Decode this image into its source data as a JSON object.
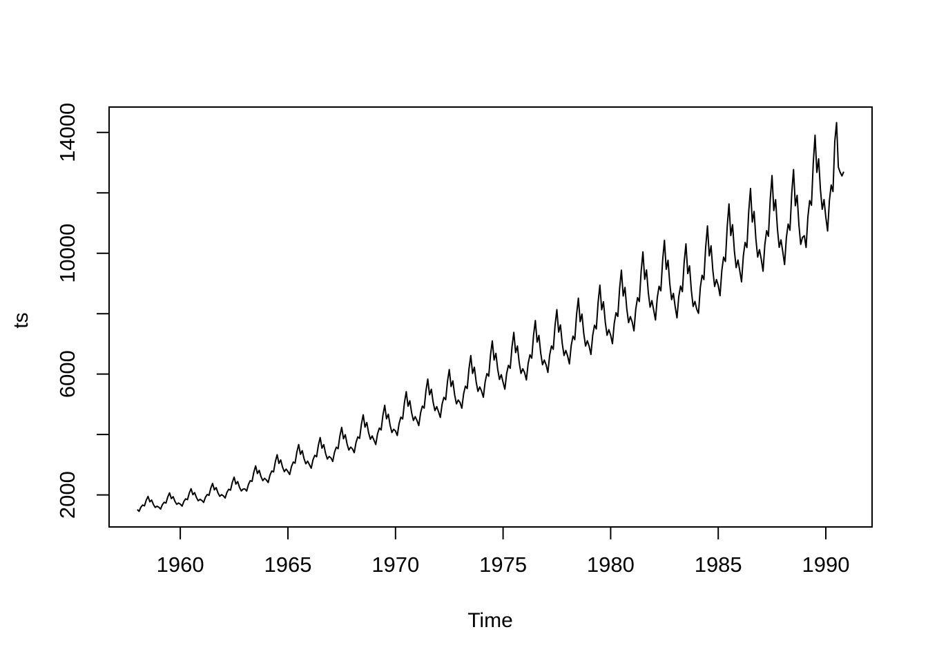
{
  "chart_data": {
    "type": "line",
    "title": "",
    "xlabel": "Time",
    "ylabel": "ts",
    "series_name": "ts",
    "x_start": 1958,
    "frequency": 12,
    "x_end": 1990.8333,
    "xlim": [
      1956.69,
      1992.15
    ],
    "ylim": [
      938,
      14841
    ],
    "x_ticks": [
      1960,
      1965,
      1970,
      1975,
      1980,
      1985,
      1990
    ],
    "y_ticks": [
      2000,
      4000,
      6000,
      8000,
      10000,
      12000,
      14000
    ],
    "y_labeled_ticks": [
      2000,
      6000,
      10000,
      14000
    ],
    "grid": false,
    "legend": "none",
    "line_color": "#000000",
    "background_color": "#ffffff",
    "values": [
      1513,
      1453,
      1591,
      1663,
      1635,
      1825,
      1949,
      1770,
      1827,
      1681,
      1585,
      1624,
      1592,
      1530,
      1677,
      1755,
      1728,
      1931,
      2065,
      1878,
      1940,
      1787,
      1686,
      1731,
      1693,
      1628,
      1786,
      1870,
      1842,
      2060,
      2204,
      2006,
      2074,
      1911,
      1804,
      1853,
      1817,
      1749,
      1920,
      2013,
      1985,
      2221,
      2378,
      2166,
      2241,
      2067,
      1953,
      2007,
      1969,
      1896,
      2083,
      2185,
      2156,
      2414,
      2587,
      2357,
      2441,
      2252,
      2130,
      2190,
      2199,
      2127,
      2345,
      2470,
      2447,
      2750,
      2958,
      2706,
      2811,
      2604,
      2471,
      2549,
      2493,
      2409,
      2652,
      2790,
      2761,
      3099,
      3329,
      3042,
      3157,
      2921,
      2769,
      2853,
      2774,
      2674,
      2940,
      3087,
      3049,
      3418,
      3666,
      3343,
      3465,
      3200,
      3028,
      3117,
      2999,
      2884,
      3161,
      3310,
      3261,
      3644,
      3898,
      3546,
      3664,
      3376,
      3187,
      3271,
      3225,
      3106,
      3411,
      3577,
      3529,
      3953,
      4234,
      3858,
      3994,
      3685,
      3484,
      3582,
      3524,
      3397,
      3734,
      3920,
      3871,
      4338,
      4652,
      4242,
      4396,
      4059,
      3841,
      3952,
      3813,
      3667,
      4022,
      4212,
      4150,
      4640,
      4965,
      4517,
      4671,
      4304,
      4064,
      4172,
      4117,
      3966,
      4358,
      4572,
      4513,
      5054,
      5417,
      4937,
      5114,
      4719,
      4464,
      4590,
      4462,
      4294,
      4714,
      4940,
      4871,
      5450,
      5835,
      5313,
      5497,
      5069,
      4790,
      4921,
      4752,
      4565,
      5002,
      5232,
      5150,
      5752,
      6148,
      5588,
      5773,
      5313,
      5013,
      5141,
      5060,
      4869,
      5344,
      5600,
      5520,
      6177,
      6612,
      6020,
      6228,
      5742,
      5425,
      5574,
      5437,
      5232,
      5741,
      6015,
      5929,
      6633,
      7099,
      6463,
      6685,
      6163,
      5822,
      5980,
      5730,
      5500,
      6020,
      6290,
      6190,
      6910,
      7380,
      6710,
      6930,
      6380,
      6020,
      6175,
      6049,
      5805,
      6352,
      6637,
      6525,
      7280,
      7772,
      7057,
      7281,
      6695,
      6308,
      6464,
      6307,
      6055,
      6631,
      6932,
      6819,
      7613,
      8132,
      7388,
      7627,
      7016,
      6615,
      6782,
      6601,
      6338,
      6941,
      7257,
      7139,
      7970,
      8514,
      7735,
      7987,
      7348,
      6929,
      7103,
      6923,
      6649,
      7284,
      7617,
      7495,
      8370,
      8944,
      8128,
      8394,
      7724,
      7285,
      7471,
      7291,
      7006,
      7677,
      8032,
      7907,
      8833,
      9442,
      8585,
      8869,
      8165,
      7703,
      7903,
      7728,
      7430,
      8147,
      8530,
      8402,
      9392,
      10046,
      9138,
      9447,
      8702,
      8215,
      8433,
      8119,
      7790,
      8525,
      8907,
      8756,
      9769,
      10428,
      9468,
      9769,
      8981,
      8463,
      8671,
      8225,
      7860,
      8566,
      8915,
      8729,
      9699,
      10312,
      9326,
      9583,
      8776,
      8237,
      8406,
      8150,
      8010,
      8861,
      9272,
      9129,
      10199,
      10904,
      9914,
      10244,
      9432,
      8900,
      9131,
      8938,
      8595,
      9427,
      9872,
      9727,
      10875,
      11635,
      10586,
      10946,
      10085,
      9523,
      9777,
      9430,
      9053,
      9910,
      10360,
      10189,
      11372,
      12145,
      11032,
      11386,
      10474,
      9874,
      10120,
      9803,
      9404,
      10288,
      10747,
      10562,
      11782,
      12574,
      11415,
      11774,
      10823,
      10196,
      10444,
      10051,
      9626,
      10515,
      10967,
      10762,
      11986,
      12772,
      11575,
      11921,
      10941,
      10292,
      10527,
      10580,
      10192,
      11197,
      11745,
      11590,
      12980,
      13908,
      12676,
      13125,
      12113,
      11455,
      11778,
      11196,
      10736,
      11741,
      12260,
      12044,
      13700,
      14326,
      12850,
      12680,
      12560,
      12700
    ]
  }
}
